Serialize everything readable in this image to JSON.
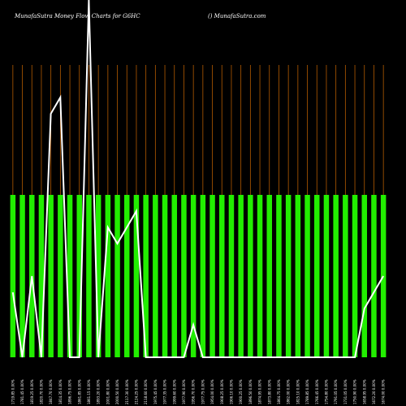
{
  "header": {
    "title": "MunafaSutra  Money Flow  Charts for G6HC",
    "site": "() MunafaSutra.com"
  },
  "colors": {
    "background": "#000000",
    "bar": "#22ee00",
    "vline": "#b35a00",
    "line": "#ffffff"
  },
  "chart_data": {
    "type": "bar",
    "title": "MunafaSutra  Money Flow  Charts for G6HC",
    "bar_values": [
      1,
      1,
      1,
      1,
      1,
      1,
      1,
      1,
      1,
      1,
      1,
      1,
      1,
      1,
      1,
      1,
      1,
      1,
      1,
      1,
      1,
      1,
      1,
      1,
      1,
      1,
      1,
      1,
      1,
      1,
      1,
      1,
      1,
      1,
      1,
      1,
      1,
      1,
      1,
      1
    ],
    "line": {
      "values": [
        20,
        0,
        25,
        0,
        75,
        80,
        0,
        0,
        110,
        0,
        40,
        35,
        40,
        45,
        0,
        0,
        0,
        0,
        0,
        10,
        0,
        0,
        0,
        0,
        0,
        0,
        0,
        0,
        0,
        0,
        0,
        0,
        0,
        0,
        0,
        0,
        0,
        15,
        20,
        25
      ],
      "ylim": [
        0,
        110
      ]
    },
    "x_labels": [
      "1719.85 0.00%",
      "1781.45 0.00%",
      "1819.25 0.00%",
      "1820.70 0.00%",
      "1847.70 0.00%",
      "1814.35 0.00%",
      "1896.75 0.00%",
      "1861.85 0.00%",
      "1861.15 0.00%",
      "1893.20 0.00%",
      "2001.80 0.00%",
      "2000.50 0.00%",
      "2117.30 0.00%",
      "2124.25 0.00%",
      "2118.60 0.00%",
      "1975.45 0.00%",
      "1977.35 0.00%",
      "1999.60 0.00%",
      "1977.90 0.00%",
      "1956.70 0.00%",
      "1977.75 0.00%",
      "1954.00 0.00%",
      "1908.25 0.00%",
      "1906.10 0.00%",
      "1900.25 0.00%",
      "1896.50 0.00%",
      "1874.95 0.00%",
      "1873.80 0.00%",
      "1864.75 0.00%",
      "1862.00 0.00%",
      "1825.10 0.00%",
      "1789.85 0.00%",
      "1766.45 0.00%",
      "1754.80 0.00%",
      "1791.05 0.00%",
      "1731.05 0.00%",
      "1750.90 0.00%",
      "1658.95 0.00%",
      "1672.20 0.00%",
      "1674.00 0.00%"
    ]
  }
}
